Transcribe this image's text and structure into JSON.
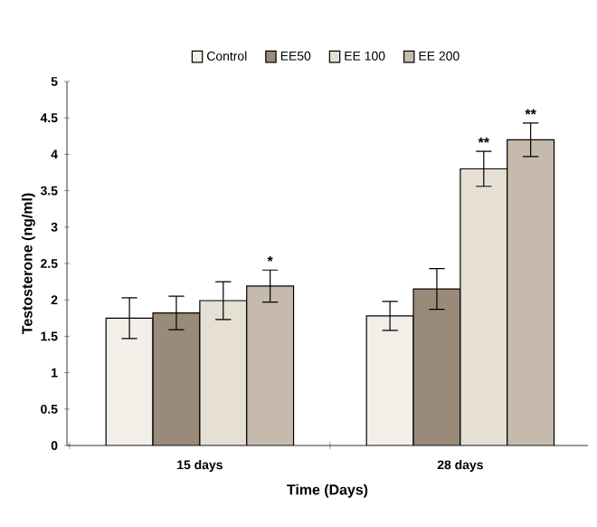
{
  "chart_data": {
    "type": "bar",
    "xlabel": "Time (Days)",
    "ylabel": "Testosterone (ng/ml)",
    "categories": [
      "15 days",
      "28 days"
    ],
    "series": [
      {
        "name": "Control",
        "color": "#f2eee8",
        "values": [
          1.75,
          1.78
        ],
        "errors": [
          0.28,
          0.2
        ]
      },
      {
        "name": "EE50",
        "color": "#9a8a7a",
        "values": [
          1.82,
          2.15
        ],
        "errors": [
          0.23,
          0.28
        ]
      },
      {
        "name": "EE 100",
        "color": "#e6dfd4",
        "values": [
          1.99,
          3.8
        ],
        "errors": [
          0.26,
          0.24
        ]
      },
      {
        "name": "EE 200",
        "color": "#c6baac",
        "values": [
          2.19,
          4.2
        ],
        "errors": [
          0.22,
          0.23
        ]
      }
    ],
    "ylim": [
      0,
      5
    ],
    "yticks": [
      0,
      0.5,
      1,
      1.5,
      2,
      2.5,
      3,
      3.5,
      4,
      4.5,
      5
    ],
    "annotations": [
      "*",
      "**",
      "**"
    ],
    "grid": false,
    "legend": "top"
  }
}
